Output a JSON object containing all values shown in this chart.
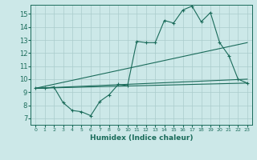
{
  "xlabel": "Humidex (Indice chaleur)",
  "ylabel": "",
  "bg_color": "#cce8e8",
  "grid_color": "#aacccc",
  "line_color": "#1a6b5a",
  "xlim": [
    -0.5,
    23.5
  ],
  "ylim": [
    6.5,
    15.7
  ],
  "yticks": [
    7,
    8,
    9,
    10,
    11,
    12,
    13,
    14,
    15
  ],
  "xticks": [
    0,
    1,
    2,
    3,
    4,
    5,
    6,
    7,
    8,
    9,
    10,
    11,
    12,
    13,
    14,
    15,
    16,
    17,
    18,
    19,
    20,
    21,
    22,
    23
  ],
  "line1_x": [
    0,
    1,
    2,
    3,
    4,
    5,
    6,
    7,
    8,
    9,
    10,
    11,
    12,
    13,
    14,
    15,
    16,
    17,
    18,
    19,
    20,
    21,
    22,
    23
  ],
  "line1_y": [
    9.3,
    9.3,
    9.4,
    8.2,
    7.6,
    7.5,
    7.2,
    8.3,
    8.8,
    9.6,
    9.5,
    12.9,
    12.8,
    12.8,
    14.5,
    14.3,
    15.3,
    15.6,
    14.4,
    15.1,
    12.8,
    11.8,
    10.0,
    9.7
  ],
  "line2_x": [
    0,
    23
  ],
  "line2_y": [
    9.3,
    10.0
  ],
  "line3_x": [
    0,
    23
  ],
  "line3_y": [
    9.3,
    12.8
  ],
  "line4_x": [
    0,
    23
  ],
  "line4_y": [
    9.3,
    9.7
  ]
}
